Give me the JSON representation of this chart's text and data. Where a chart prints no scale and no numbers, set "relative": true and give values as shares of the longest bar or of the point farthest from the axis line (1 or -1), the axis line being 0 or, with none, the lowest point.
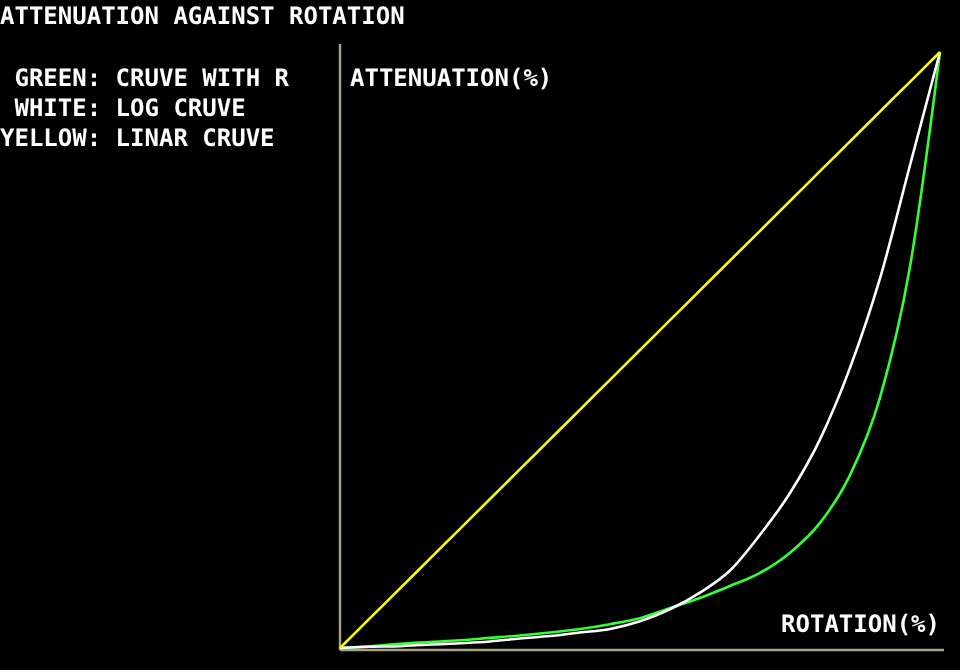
{
  "chart_data": {
    "type": "line",
    "title": "ATTENUATION AGAINST ROTATION",
    "xlabel": "ROTATION(%)",
    "ylabel": "ATTENUATION(%)",
    "relative": true,
    "marker": "none",
    "line_style": "solid",
    "categories": [
      null,
      null,
      null,
      null,
      null,
      null,
      null,
      null,
      null,
      null,
      null,
      null,
      null,
      null,
      null,
      null,
      null,
      null,
      null,
      null,
      null
    ],
    "series": [
      {
        "color": "#33ff33",
        "values": [
          0,
          0.003,
          0.007,
          0.01,
          0.013,
          0.017,
          0.021,
          0.026,
          0.032,
          0.04,
          0.05,
          0.067,
          0.084,
          0.104,
          0.126,
          0.16,
          0.21,
          0.29,
          0.42,
          0.64,
          1
        ]
      },
      {
        "color": "#ffffff",
        "values": [
          0,
          0.002,
          0.003,
          0.006,
          0.008,
          0.011,
          0.016,
          0.02,
          0.026,
          0.032,
          0.045,
          0.065,
          0.093,
          0.13,
          0.19,
          0.26,
          0.35,
          0.47,
          0.62,
          0.81,
          1
        ]
      },
      {
        "color": "#ffff00",
        "values": [
          0,
          0.05,
          0.1,
          0.15,
          0.2,
          0.25,
          0.3,
          0.35,
          0.4,
          0.45,
          0.5,
          0.55,
          0.6,
          0.65,
          0.7,
          0.75,
          0.8,
          0.85,
          0.9,
          0.95,
          1
        ]
      }
    ],
    "annotations": [
      " GREEN: CRUVE WITH R",
      " WHITE: LOG CRUVE",
      "YELLOW: LINAR CRUVE"
    ]
  }
}
